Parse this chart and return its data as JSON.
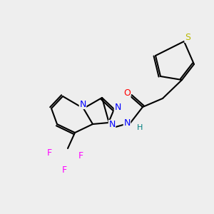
{
  "background_color": "#eeeeee",
  "bond_color": "#000000",
  "atom_colors": {
    "N": "#0000ff",
    "O": "#ff0000",
    "S": "#b8b800",
    "F": "#ff00ff",
    "H": "#008080",
    "C": "#000000"
  },
  "figsize": [
    3.0,
    3.0
  ],
  "dpi": 100
}
